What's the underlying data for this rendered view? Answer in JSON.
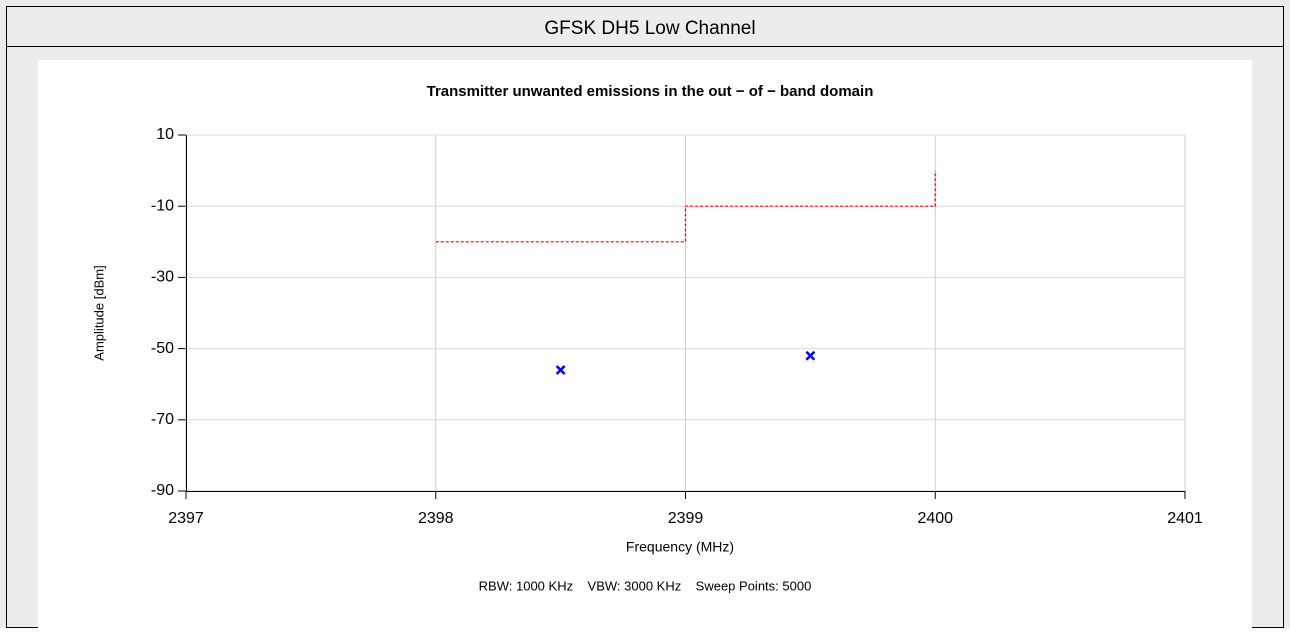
{
  "chart_data": {
    "type": "scatter",
    "header": "GFSK DH5 Low Channel",
    "title": "Transmitter unwanted emissions in the out − of − band domain",
    "xlabel": "Frequency (MHz)",
    "ylabel": "Amplitude [dBm]",
    "note": "RBW: 1000 KHz    VBW: 3000 KHz    Sweep Points: 5000",
    "xlim": [
      2397,
      2401
    ],
    "xticks": [
      2397,
      2398,
      2399,
      2400,
      2401
    ],
    "ylim": [
      -90,
      10
    ],
    "yticks": [
      10,
      -10,
      -30,
      -50,
      -70,
      -90
    ],
    "grid": true,
    "series": [
      {
        "type": "line",
        "color": "#ff0000",
        "line_style": "dashed",
        "x": [
          2398,
          2399,
          2399,
          2400,
          2400
        ],
        "values": [
          -20,
          -20,
          -10,
          -10,
          0
        ]
      },
      {
        "type": "scatter",
        "color": "#0000ff",
        "x": [
          2398.5,
          2399.5
        ],
        "values": [
          -56,
          -52
        ]
      }
    ]
  }
}
